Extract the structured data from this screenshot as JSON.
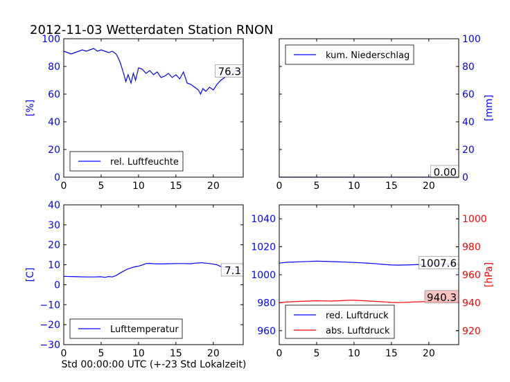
{
  "title": "2012-11-03 Wetterdaten Station RNON",
  "xlabel": "Std 00:00:00 UTC (+-23 Std Lokalzeit)",
  "colors": {
    "blue": "#0000ff",
    "red": "#ff0000",
    "frame": "#000000",
    "labelbox_red": "#f4b8b8"
  },
  "chart_data": [
    {
      "id": "humidity",
      "type": "line",
      "ylabel": "[%]",
      "ylabel_color": "#0000ff",
      "xlim": [
        0,
        24
      ],
      "ylim": [
        0,
        100
      ],
      "xticks": [
        0,
        5,
        10,
        15,
        20
      ],
      "yticks": [
        0,
        20,
        40,
        60,
        80,
        100
      ],
      "ytick_color": "#0000ff",
      "legend": {
        "placement": "lower-left",
        "entries": [
          "rel. Luftfeuchte"
        ]
      },
      "last_value_label": "76.3",
      "series": [
        {
          "name": "rel. Luftfeuchte",
          "color": "#0000ff",
          "x": [
            0,
            0.5,
            1,
            1.5,
            2,
            2.5,
            3,
            3.5,
            4,
            4.5,
            5,
            5.5,
            6,
            6.5,
            7,
            7.3,
            7.6,
            8,
            8.3,
            8.6,
            9,
            9.3,
            9.6,
            10,
            10.5,
            11,
            11.5,
            12,
            12.5,
            13,
            13.5,
            14,
            14.5,
            15,
            15.5,
            16,
            16.5,
            17,
            17.5,
            18,
            18.3,
            18.6,
            19,
            19.5,
            20,
            20.5,
            21,
            21.5,
            22,
            22.5,
            23,
            23.5,
            24
          ],
          "y": [
            91,
            90,
            89,
            90,
            91,
            92,
            91,
            92,
            93,
            91,
            92,
            91,
            90,
            91,
            89,
            86,
            82,
            75,
            69,
            74,
            68,
            75,
            70,
            79,
            78,
            75,
            77,
            74,
            76,
            72,
            73,
            75,
            72,
            74,
            71,
            76,
            68,
            67,
            65,
            63,
            60,
            64,
            62,
            65,
            63,
            67,
            70,
            72,
            75,
            74,
            77,
            76,
            76.3
          ]
        }
      ]
    },
    {
      "id": "precipitation",
      "type": "line",
      "ylabel": "[mm]",
      "ylabel_color": "#0000ff",
      "xlim": [
        0,
        24
      ],
      "ylim": [
        0,
        100
      ],
      "xticks": [
        0,
        5,
        10,
        15,
        20
      ],
      "yticks": [
        0,
        20,
        40,
        60,
        80,
        100
      ],
      "ytick_color": "#0000ff",
      "yaxis_side": "right",
      "legend": {
        "placement": "upper-left",
        "entries": [
          "kum. Niederschlag"
        ]
      },
      "last_value_label": "0.00",
      "series": [
        {
          "name": "kum. Niederschlag",
          "color": "#0000ff",
          "x": [
            0,
            24
          ],
          "y": [
            0,
            0
          ]
        }
      ]
    },
    {
      "id": "temperature",
      "type": "line",
      "ylabel": "[C]",
      "ylabel_color": "#0000ff",
      "xlim": [
        0,
        24
      ],
      "ylim": [
        -30,
        40
      ],
      "xticks": [
        0,
        5,
        10,
        15,
        20
      ],
      "yticks": [
        -30,
        -20,
        -10,
        0,
        10,
        20,
        30,
        40
      ],
      "ytick_color": "#0000ff",
      "legend": {
        "placement": "lower-left",
        "entries": [
          "Lufttemperatur"
        ]
      },
      "last_value_label": "7.1",
      "series": [
        {
          "name": "Lufttemperatur",
          "color": "#0000ff",
          "x": [
            0,
            1,
            2,
            3,
            4,
            5,
            5.5,
            6,
            6.5,
            7,
            7.5,
            8,
            8.5,
            9,
            9.5,
            10,
            10.5,
            11,
            11.5,
            12,
            13,
            14,
            15,
            16,
            17,
            17.5,
            18,
            18.5,
            19,
            19.5,
            20,
            20.5,
            21,
            21.5,
            22,
            22.5,
            23,
            23.5,
            24
          ],
          "y": [
            4.2,
            4.1,
            4.0,
            3.9,
            3.9,
            4.0,
            3.7,
            4.1,
            3.9,
            4.6,
            5.8,
            6.8,
            7.8,
            8.4,
            9.0,
            9.3,
            9.9,
            10.6,
            10.7,
            10.5,
            10.4,
            10.5,
            10.6,
            10.6,
            10.5,
            10.8,
            10.9,
            11.0,
            10.8,
            10.6,
            10.3,
            10.0,
            9.1,
            8.6,
            8.1,
            7.8,
            7.4,
            7.2,
            7.1
          ]
        }
      ]
    },
    {
      "id": "pressure",
      "type": "line",
      "ylabel": "[hPa]",
      "ylabel_color": "#ff0000",
      "xlim": [
        0,
        24
      ],
      "ylim_left": [
        950,
        1050
      ],
      "ylim_right": [
        910,
        1010
      ],
      "xticks": [
        0,
        5,
        10,
        15,
        20
      ],
      "yticks_left": [
        960,
        980,
        1000,
        1020,
        1040
      ],
      "yticks_right": [
        920,
        940,
        960,
        980,
        1000
      ],
      "ytick_color_left": "#0000ff",
      "ytick_color_right": "#ff0000",
      "legend": {
        "placement": "lower-left",
        "entries": [
          "red. Luftdruck",
          "abs. Luftdruck"
        ]
      },
      "last_value_label_blue": "1007.6",
      "last_value_label_red": "940.3",
      "series": [
        {
          "name": "red. Luftdruck",
          "color": "#0000ff",
          "axis": "left",
          "x": [
            0,
            1,
            2,
            3,
            4,
            5,
            6,
            7,
            8,
            9,
            10,
            11,
            12,
            13,
            14,
            15,
            16,
            17,
            18,
            19,
            20,
            21,
            22,
            23,
            24
          ],
          "y": [
            1008.3,
            1008.9,
            1009.1,
            1009.3,
            1009.5,
            1009.7,
            1009.6,
            1009.4,
            1009.2,
            1009.0,
            1008.8,
            1008.5,
            1008.2,
            1007.8,
            1007.4,
            1007.0,
            1006.9,
            1007.0,
            1007.2,
            1007.4,
            1007.6,
            1007.7,
            1007.6,
            1007.6,
            1007.6
          ]
        },
        {
          "name": "abs. Luftdruck",
          "color": "#ff0000",
          "axis": "right",
          "x": [
            0,
            1,
            2,
            3,
            4,
            5,
            6,
            7,
            8,
            9,
            10,
            11,
            12,
            13,
            14,
            15,
            16,
            17,
            18,
            19,
            20,
            21,
            22,
            23,
            24
          ],
          "y": [
            940.0,
            940.5,
            940.8,
            941.0,
            941.2,
            941.4,
            941.3,
            941.2,
            941.4,
            941.7,
            941.8,
            941.5,
            941.2,
            940.9,
            940.6,
            940.2,
            940.1,
            940.3,
            940.5,
            940.7,
            940.9,
            941.0,
            940.6,
            940.4,
            940.3
          ]
        }
      ]
    }
  ]
}
